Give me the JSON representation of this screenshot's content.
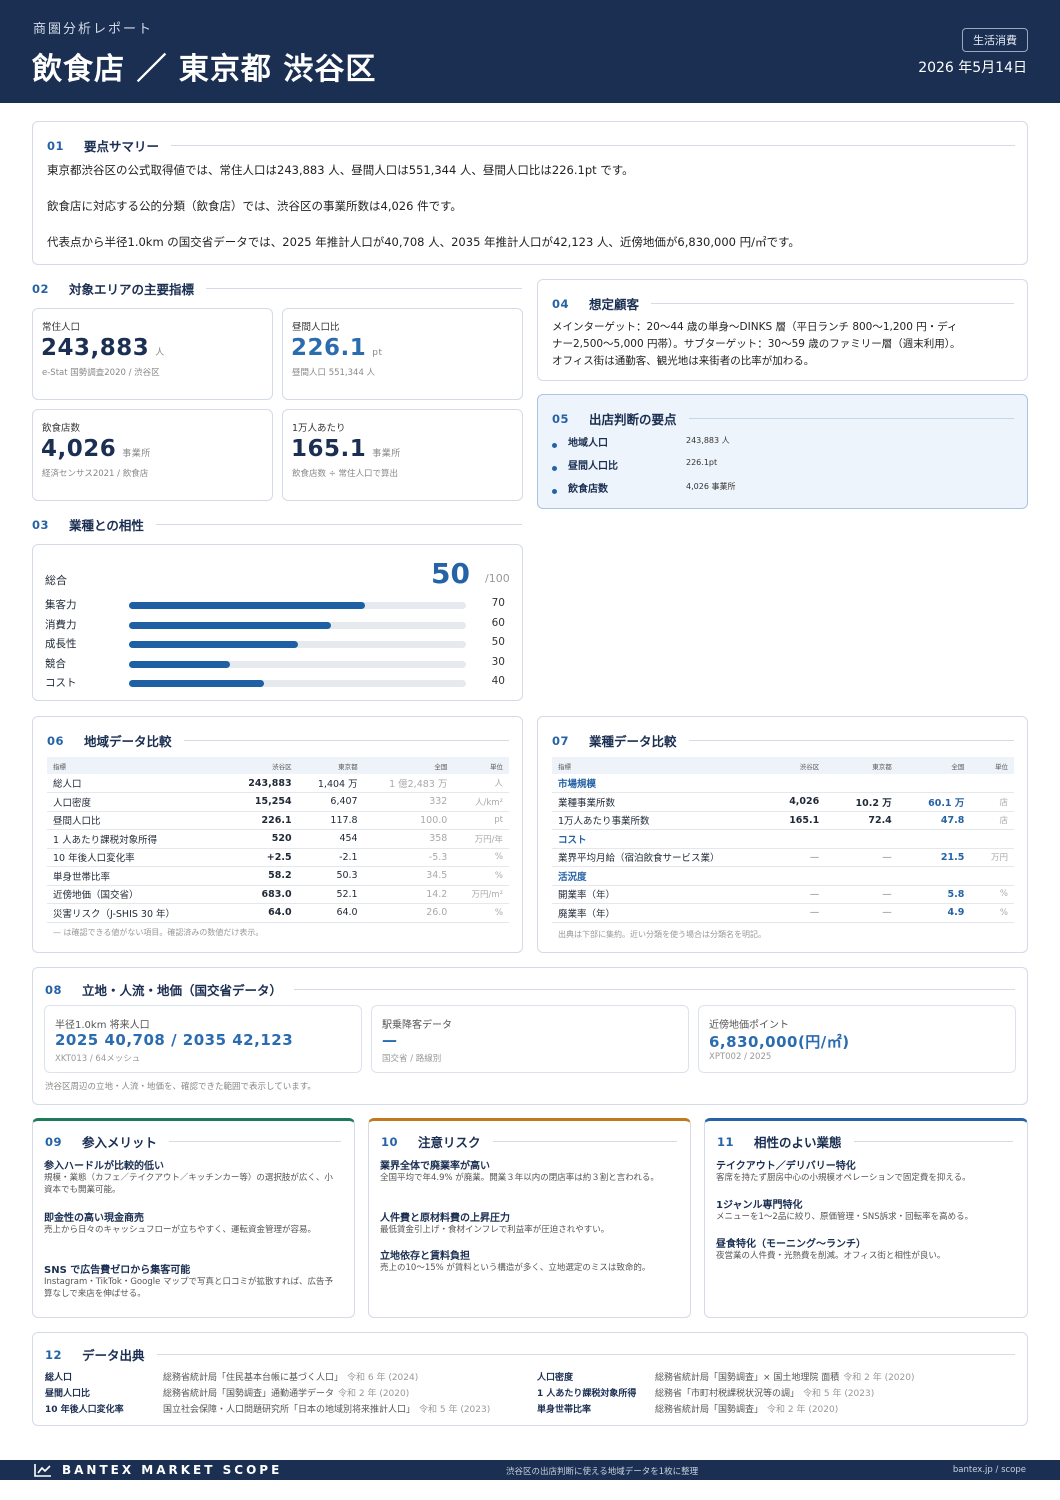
{
  "header": {
    "subtitle": "商圏分析レポート",
    "title": "飲食店 ／ 東京都 渋谷区",
    "tag": "生活消費",
    "date": "2026 年5月14日"
  },
  "s01": {
    "num": "01",
    "title": "要点サマリー",
    "lines": [
      "東京都渋谷区の公式取得値では、常住人口は243,883 人、昼間人口は551,344 人、昼間人口比は226.1pt です。",
      "飲食店に対応する公的分類（飲食店）では、渋谷区の事業所数は4,026 件です。",
      "代表点から半径1.0km の国交省データでは、2025 年推計人口が40,708 人、2035 年推計人口が42,123 人、近傍地価が6,830,000 円/㎡です。"
    ]
  },
  "s02": {
    "num": "02",
    "title": "対象エリアの主要指標",
    "metrics": [
      {
        "label": "常住人口",
        "value": "243,883",
        "unit": "人",
        "note": "e-Stat 国勢調査2020 / 渋谷区"
      },
      {
        "label": "昼間人口比",
        "value": "226.1",
        "unit": "pt",
        "note": "昼間人口 551,344 人"
      },
      {
        "label": "飲食店数",
        "value": "4,026",
        "unit": "事業所",
        "note": "経済センサス2021 / 飲食店"
      },
      {
        "label": "1万人あたり",
        "value": "165.1",
        "unit": "事業所",
        "note": "飲食店数 ÷ 常住人口で算出"
      }
    ]
  },
  "s03": {
    "num": "03",
    "title": "業種との相性",
    "total_label": "総合",
    "total": "50",
    "total_max": "/100",
    "bars": [
      {
        "name": "集客力",
        "value": 70
      },
      {
        "name": "消費力",
        "value": 60
      },
      {
        "name": "成長性",
        "value": 50
      },
      {
        "name": "競合",
        "value": 30
      },
      {
        "name": "コスト",
        "value": 40
      }
    ]
  },
  "s04": {
    "num": "04",
    "title": "想定顧客",
    "lines": [
      "メインターゲット：20〜44 歳の単身〜DINKS 層（平日ランチ 800〜1,200 円・ディ",
      "ナー2,500〜5,000 円帯）。サブターゲット：30〜59 歳のファミリー層（週末利用）。",
      "オフィス街は通勤客、観光地は来街者の比率が加わる。"
    ]
  },
  "s05": {
    "num": "05",
    "title": "出店判断の要点",
    "points": [
      {
        "k": "地域人口",
        "v": "243,883 人"
      },
      {
        "k": "昼間人口比",
        "v": "226.1pt"
      },
      {
        "k": "飲食店数",
        "v": "4,026 事業所"
      }
    ]
  },
  "s06": {
    "num": "06",
    "title": "地域データ比較",
    "headers": [
      "指標",
      "渋谷区",
      "東京都",
      "全国",
      "単位"
    ],
    "rows": [
      [
        "総人口",
        "243,883",
        "1,404 万",
        "1 億2,483 万",
        "人"
      ],
      [
        "人口密度",
        "15,254",
        "6,407",
        "332",
        "人/km²"
      ],
      [
        "昼間人口比",
        "226.1",
        "117.8",
        "100.0",
        "pt"
      ],
      [
        "1 人あたり課税対象所得",
        "520",
        "454",
        "358",
        "万円/年"
      ],
      [
        "10 年後人口変化率",
        "+2.5",
        "-2.1",
        "-5.3",
        "%"
      ],
      [
        "単身世帯比率",
        "58.2",
        "50.3",
        "34.5",
        "%"
      ],
      [
        "近傍地価（国交省）",
        "683.0",
        "52.1",
        "14.2",
        "万円/m²"
      ],
      [
        "災害リスク（J-SHIS 30 年）",
        "64.0",
        "64.0",
        "26.0",
        "%"
      ]
    ],
    "note": "— は確認できる値がない項目。確認済みの数値だけ表示。"
  },
  "s07": {
    "num": "07",
    "title": "業種データ比較",
    "headers": [
      "指標",
      "渋谷区",
      "東京都",
      "全国",
      "単位"
    ],
    "rows": [
      {
        "cat": "市場規模"
      },
      {
        "cells": [
          "業種事業所数",
          "4,026",
          "10.2 万",
          "60.1 万",
          "店"
        ]
      },
      {
        "cells": [
          "1万人あたり事業所数",
          "165.1",
          "72.4",
          "47.8",
          "店"
        ]
      },
      {
        "cat": "コスト"
      },
      {
        "cells": [
          "業界平均月給（宿泊飲食サービス業）",
          "—",
          "—",
          "21.5",
          "万円"
        ]
      },
      {
        "cat": "活況度"
      },
      {
        "cells": [
          "開業率（年）",
          "—",
          "—",
          "5.8",
          "%"
        ]
      },
      {
        "cells": [
          "廃業率（年）",
          "—",
          "—",
          "4.9",
          "%"
        ]
      }
    ],
    "note": "出典は下部に集約。近い分類を使う場合は分類名を明記。"
  },
  "s08": {
    "num": "08",
    "title": "立地・人流・地価（国交省データ）",
    "boxes": [
      {
        "label": "半径1.0km 将来人口",
        "value": "2025 40,708 / 2035 42,123",
        "note": "XKT013 / 64メッシュ"
      },
      {
        "label": "駅乗降客データ",
        "value": "—",
        "note": "国交省 / 路線別"
      },
      {
        "label": "近傍地価ポイント",
        "value": "6,830,000(円/㎡)",
        "note": "XPT002 / 2025"
      }
    ],
    "note": "渋谷区周辺の立地・人流・地価を、確認できた範囲で表示しています。"
  },
  "s09": {
    "num": "09",
    "title": "参入メリット",
    "color": "#1f7a5c",
    "items": [
      {
        "h": "参入ハードルが比較的低い",
        "t": "規模・業態（カフェ／テイクアウト／キッチンカー等）の選択肢が広く、小資本でも開業可能。"
      },
      {
        "h": "即金性の高い現金商売",
        "t": "売上から日々のキャッシュフローが立ちやすく、運転資金管理が容易。"
      },
      {
        "h": "SNS で広告費ゼロから集客可能",
        "t": "Instagram・TikTok・Google マップで写真と口コミが拡散すれば、広告予算なしで来店を伸ばせる。"
      }
    ]
  },
  "s10": {
    "num": "10",
    "title": "注意リスク",
    "color": "#c07a1c",
    "items": [
      {
        "h": "業界全体で廃業率が高い",
        "t": "全国平均で年4.9% が廃業。開業３年以内の閉店率は約３割と言われる。"
      },
      {
        "h": "人件費と原材料費の上昇圧力",
        "t": "最低賃金引上げ・食材インフレで利益率が圧迫されやすい。"
      },
      {
        "h": "立地依存と賃料負担",
        "t": "売上の10〜15% が賃料という構造が多く、立地選定のミスは致命的。"
      }
    ]
  },
  "s11": {
    "num": "11",
    "title": "相性のよい業態",
    "color": "#2563a6",
    "items": [
      {
        "h": "テイクアウト／デリバリー特化",
        "t": "客席を持たず厨房中心の小規模オペレーションで固定費を抑える。"
      },
      {
        "h": "1ジャンル専門特化",
        "t": "メニューを1〜2品に絞り、原価管理・SNS訴求・回転率を高める。"
      },
      {
        "h": "昼食特化（モーニング〜ランチ）",
        "t": "夜営業の人件費・光熱費を削減。オフィス街と相性が良い。"
      }
    ]
  },
  "s12": {
    "num": "12",
    "title": "データ出典",
    "left": [
      {
        "k": "総人口",
        "s": "総務省統計局「住民基本台帳に基づく人口」",
        "y": "令和 6 年 (2024)"
      },
      {
        "k": "昼間人口比",
        "s": "総務省統計局「国勢調査」通勤通学データ",
        "y": "令和 2 年 (2020)"
      },
      {
        "k": "10 年後人口変化率",
        "s": "国立社会保障・人口問題研究所「日本の地域別将来推計人口」",
        "y": "令和 5 年 (2023)"
      }
    ],
    "right": [
      {
        "k": "人口密度",
        "s": "総務省統計局「国勢調査」× 国土地理院 面積",
        "y": "令和 2 年 (2020)"
      },
      {
        "k": "1 人あたり課税対象所得",
        "s": "総務省「市町村税課税状況等の調」",
        "y": "令和 5 年 (2023)"
      },
      {
        "k": "単身世帯比率",
        "s": "総務省統計局「国勢調査」",
        "y": "令和 2 年 (2020)"
      }
    ]
  },
  "footer": {
    "brand": "BANTEX MARKET SCOPE",
    "tagline": "渋谷区の出店判断に使える地域データを1枚に整理",
    "url": "bantex.jp / scope"
  }
}
